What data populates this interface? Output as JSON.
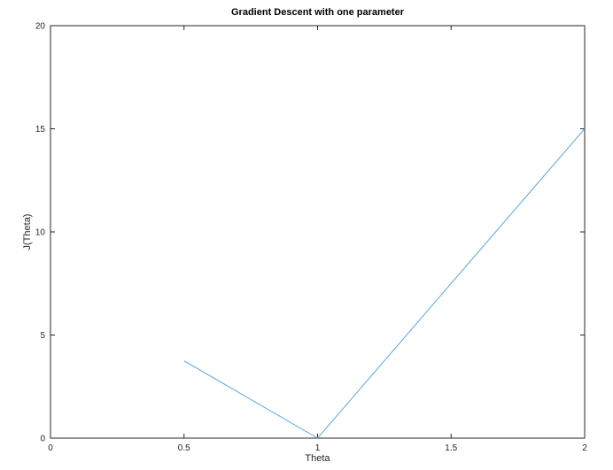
{
  "chart_data": {
    "type": "line",
    "title": "Gradient Descent with one parameter",
    "xlabel": "Theta",
    "ylabel": "J(Theta)",
    "xlim": [
      0,
      2
    ],
    "ylim": [
      0,
      20
    ],
    "xticks": [
      "0",
      "0.5",
      "1",
      "1.5",
      "2"
    ],
    "xtick_values": [
      0,
      0.5,
      1,
      1.5,
      2
    ],
    "yticks": [
      "0",
      "5",
      "10",
      "15",
      "20"
    ],
    "ytick_values": [
      0,
      5,
      10,
      15,
      20
    ],
    "grid": false,
    "series": [
      {
        "x": [
          0.5,
          1,
          2
        ],
        "y": [
          3.75,
          0,
          15
        ],
        "color": "#5aa6df"
      }
    ]
  }
}
